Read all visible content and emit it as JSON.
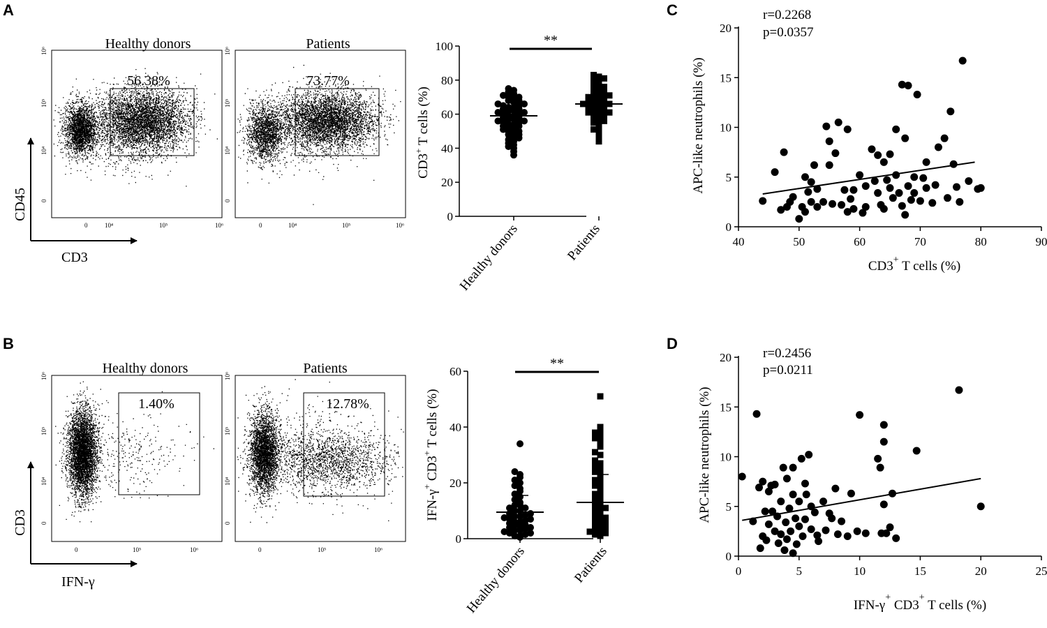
{
  "panels": {
    "a": {
      "label": "A",
      "flow_left": {
        "title": "Healthy donors",
        "gate_pct": "56.38%"
      },
      "flow_right": {
        "title": "Patients",
        "gate_pct": "73.77%"
      },
      "y_axis": "CD45",
      "x_axis": "CD3",
      "flow_y_ticks": [
        "10⁶",
        "10⁵",
        "10⁴",
        "0"
      ],
      "flow_x_ticks": [
        "0",
        "10⁴",
        "10⁵",
        "10⁶"
      ],
      "sig": "**"
    },
    "b": {
      "label": "B",
      "flow_left": {
        "title": "Healthy donors",
        "gate_pct": "1.40%"
      },
      "flow_right": {
        "title": "Patients",
        "gate_pct": "12.78%"
      },
      "y_axis": "CD3",
      "x_axis": "IFN-γ",
      "flow_y_ticks": [
        "10⁶",
        "10⁵",
        "10⁴",
        "0"
      ],
      "flow_x_ticks": [
        "0",
        "10⁵",
        "10⁶"
      ],
      "sig": "**"
    },
    "c": {
      "label": "C",
      "r": "r=0.2268",
      "p": "p=0.0357"
    },
    "d": {
      "label": "D",
      "r": "r=0.2456",
      "p": "p=0.0211"
    }
  },
  "chart_data": [
    {
      "id": "A-dot",
      "type": "scatter",
      "ylabel": "CD3⁺ T cells (%)",
      "ylabel_main": "CD3",
      "ylabel_sup": "+",
      "ylabel_rest": " T cells (%)",
      "categories": [
        "Healthy donors",
        "Patients"
      ],
      "ylim": [
        0,
        100
      ],
      "yticks": [
        0,
        20,
        40,
        60,
        80,
        100
      ],
      "means": [
        59,
        66
      ],
      "sd": [
        9,
        8
      ],
      "significance": "**",
      "series": [
        {
          "name": "Healthy donors",
          "marker": "circle",
          "values": [
            36,
            38,
            40,
            41,
            42,
            43,
            44,
            45,
            46,
            47,
            48,
            48,
            49,
            50,
            50,
            51,
            52,
            52,
            53,
            53,
            54,
            54,
            55,
            55,
            56,
            56,
            57,
            57,
            58,
            58,
            59,
            59,
            60,
            60,
            61,
            61,
            62,
            62,
            63,
            63,
            64,
            64,
            65,
            65,
            66,
            66,
            67,
            68,
            68,
            69,
            70,
            70,
            71,
            72,
            73,
            74,
            75
          ]
        },
        {
          "name": "Patients",
          "marker": "square",
          "values": [
            44,
            47,
            50,
            51,
            53,
            54,
            55,
            56,
            57,
            58,
            58,
            59,
            60,
            60,
            61,
            61,
            62,
            62,
            63,
            63,
            64,
            64,
            65,
            65,
            66,
            66,
            67,
            67,
            68,
            68,
            69,
            69,
            70,
            70,
            71,
            72,
            72,
            73,
            74,
            75,
            76,
            77,
            78,
            79,
            80,
            81,
            82,
            83
          ]
        }
      ]
    },
    {
      "id": "B-dot",
      "type": "scatter",
      "ylabel": "IFN-γ⁺ CD3⁺ T cells (%)",
      "ylabel_p1": "IFN-γ",
      "ylabel_p2": " CD3",
      "ylabel_p3": " T cells (%)",
      "ylabel_sup": "+",
      "categories": [
        "Healthy donors",
        "Patients"
      ],
      "ylim": [
        0,
        60
      ],
      "yticks": [
        0,
        20,
        40,
        60
      ],
      "means": [
        9.5,
        13
      ],
      "sd": [
        6,
        10
      ],
      "significance": "**",
      "series": [
        {
          "name": "Healthy donors",
          "marker": "circle",
          "values": [
            0.5,
            1,
            1,
            1.5,
            2,
            2,
            2.5,
            3,
            3,
            3.5,
            4,
            4,
            4.5,
            5,
            5,
            5.5,
            6,
            6,
            6.5,
            7,
            7,
            7.5,
            8,
            8,
            8.5,
            9,
            9,
            10,
            10,
            11,
            11,
            12,
            12,
            13,
            14,
            15,
            16,
            17,
            18,
            19,
            20,
            21,
            22,
            23,
            24,
            34
          ]
        },
        {
          "name": "Patients",
          "marker": "square",
          "values": [
            1,
            1.5,
            2,
            2.5,
            3,
            3.5,
            4,
            4.5,
            5,
            5.5,
            6,
            7,
            7.5,
            8,
            9,
            9.5,
            10,
            11,
            11.5,
            12,
            13,
            14,
            15,
            16,
            17,
            18,
            19,
            20,
            21,
            22,
            23,
            24,
            25,
            26,
            27,
            28,
            30,
            31,
            33,
            35,
            36,
            37,
            38,
            39,
            40,
            51
          ]
        }
      ]
    },
    {
      "id": "C",
      "type": "scatter",
      "xlabel": "CD3⁺ T cells (%)",
      "xlabel_main": "CD3",
      "xlabel_sup": "+",
      "xlabel_rest": " T cells (%)",
      "ylabel": "APC-like neutrophils (%)",
      "xlim": [
        40,
        90
      ],
      "ylim": [
        0,
        20
      ],
      "xticks": [
        40,
        50,
        60,
        70,
        80,
        90
      ],
      "yticks": [
        0,
        5,
        10,
        15,
        20
      ],
      "regression": {
        "x": [
          44,
          79
        ],
        "y": [
          3.3,
          6.5
        ]
      },
      "points": [
        [
          44,
          2.6
        ],
        [
          46,
          5.5
        ],
        [
          47,
          1.7
        ],
        [
          47.5,
          7.5
        ],
        [
          48,
          2.0
        ],
        [
          48.5,
          2.5
        ],
        [
          49,
          3.0
        ],
        [
          50,
          0.8
        ],
        [
          50.5,
          2.0
        ],
        [
          51,
          1.5
        ],
        [
          51,
          5.0
        ],
        [
          51.5,
          3.5
        ],
        [
          52,
          4.5
        ],
        [
          52,
          2.5
        ],
        [
          52.5,
          6.2
        ],
        [
          53,
          3.8
        ],
        [
          53,
          2.0
        ],
        [
          54,
          2.5
        ],
        [
          54.5,
          10.1
        ],
        [
          55,
          6.2
        ],
        [
          55,
          8.6
        ],
        [
          55.5,
          2.3
        ],
        [
          56,
          7.4
        ],
        [
          56.5,
          10.5
        ],
        [
          57,
          2.2
        ],
        [
          57.5,
          3.7
        ],
        [
          58,
          1.5
        ],
        [
          58,
          9.8
        ],
        [
          58.5,
          2.8
        ],
        [
          59,
          3.7
        ],
        [
          59,
          1.8
        ],
        [
          60,
          5.2
        ],
        [
          60.5,
          1.4
        ],
        [
          61,
          4.1
        ],
        [
          61,
          2.0
        ],
        [
          62,
          7.8
        ],
        [
          62.5,
          4.6
        ],
        [
          63,
          7.2
        ],
        [
          63,
          3.4
        ],
        [
          63.5,
          2.2
        ],
        [
          64,
          6.5
        ],
        [
          64,
          1.8
        ],
        [
          64.5,
          4.7
        ],
        [
          65,
          7.3
        ],
        [
          65,
          3.9
        ],
        [
          65.5,
          2.9
        ],
        [
          66,
          9.8
        ],
        [
          66,
          5.2
        ],
        [
          66.5,
          3.4
        ],
        [
          67,
          14.3
        ],
        [
          67,
          2.1
        ],
        [
          67.5,
          8.9
        ],
        [
          67.5,
          1.2
        ],
        [
          68,
          14.2
        ],
        [
          68,
          4.1
        ],
        [
          68.5,
          2.7
        ],
        [
          69,
          5.0
        ],
        [
          69,
          3.4
        ],
        [
          69.5,
          13.3
        ],
        [
          70,
          2.6
        ],
        [
          70.5,
          4.9
        ],
        [
          71,
          6.5
        ],
        [
          71,
          3.9
        ],
        [
          72,
          2.4
        ],
        [
          72.5,
          4.2
        ],
        [
          73,
          8.0
        ],
        [
          74,
          8.9
        ],
        [
          74.5,
          2.9
        ],
        [
          75,
          11.6
        ],
        [
          75.5,
          6.3
        ],
        [
          76,
          4.0
        ],
        [
          76.5,
          2.5
        ],
        [
          77,
          16.7
        ],
        [
          78,
          4.6
        ],
        [
          79.5,
          3.8
        ],
        [
          80,
          3.9
        ]
      ]
    },
    {
      "id": "D",
      "type": "scatter",
      "xlabel": "IFN-γ⁺ CD3⁺ T cells (%)",
      "xlabel_p1": "IFN-γ",
      "xlabel_p2": " CD3",
      "xlabel_p3": " T cells  (%)",
      "xlabel_sup": "+",
      "ylabel": "APC-like neutrophils (%)",
      "xlim": [
        0,
        25
      ],
      "ylim": [
        0,
        20
      ],
      "xticks": [
        0,
        5,
        10,
        15,
        20,
        25
      ],
      "yticks": [
        0,
        5,
        10,
        15,
        20
      ],
      "regression": {
        "x": [
          0.3,
          20
        ],
        "y": [
          3.6,
          7.8
        ]
      },
      "points": [
        [
          0.3,
          8.0
        ],
        [
          1.2,
          3.5
        ],
        [
          1.5,
          14.3
        ],
        [
          1.7,
          6.9
        ],
        [
          1.8,
          0.8
        ],
        [
          2.0,
          7.5
        ],
        [
          2.0,
          2.0
        ],
        [
          2.2,
          4.5
        ],
        [
          2.3,
          1.6
        ],
        [
          2.5,
          3.2
        ],
        [
          2.5,
          6.5
        ],
        [
          2.7,
          7.1
        ],
        [
          2.8,
          4.5
        ],
        [
          3.0,
          2.5
        ],
        [
          3.0,
          7.2
        ],
        [
          3.2,
          4.0
        ],
        [
          3.3,
          1.3
        ],
        [
          3.5,
          5.5
        ],
        [
          3.5,
          2.2
        ],
        [
          3.7,
          8.9
        ],
        [
          3.8,
          0.6
        ],
        [
          3.9,
          3.4
        ],
        [
          4.0,
          7.8
        ],
        [
          4.0,
          1.7
        ],
        [
          4.2,
          4.8
        ],
        [
          4.3,
          2.5
        ],
        [
          4.5,
          8.9
        ],
        [
          4.5,
          6.2
        ],
        [
          4.5,
          0.3
        ],
        [
          4.7,
          3.8
        ],
        [
          4.8,
          1.2
        ],
        [
          5.0,
          5.5
        ],
        [
          5.0,
          3.0
        ],
        [
          5.2,
          9.8
        ],
        [
          5.3,
          2.0
        ],
        [
          5.5,
          7.3
        ],
        [
          5.5,
          3.7
        ],
        [
          5.6,
          6.2
        ],
        [
          5.8,
          10.2
        ],
        [
          6.0,
          5.0
        ],
        [
          6.0,
          2.7
        ],
        [
          6.3,
          4.4
        ],
        [
          6.5,
          2.1
        ],
        [
          6.6,
          1.5
        ],
        [
          7.0,
          5.5
        ],
        [
          7.2,
          2.6
        ],
        [
          7.5,
          4.3
        ],
        [
          7.7,
          3.8
        ],
        [
          8.0,
          6.8
        ],
        [
          8.2,
          2.2
        ],
        [
          8.5,
          3.5
        ],
        [
          9.0,
          2.0
        ],
        [
          9.3,
          6.3
        ],
        [
          9.8,
          2.5
        ],
        [
          10.0,
          14.2
        ],
        [
          10.5,
          2.3
        ],
        [
          11.5,
          9.8
        ],
        [
          11.7,
          8.9
        ],
        [
          11.8,
          2.3
        ],
        [
          12.0,
          11.5
        ],
        [
          12.0,
          13.2
        ],
        [
          12.0,
          5.2
        ],
        [
          12.2,
          2.3
        ],
        [
          12.5,
          2.9
        ],
        [
          12.7,
          6.3
        ],
        [
          13.0,
          1.8
        ],
        [
          14.7,
          10.6
        ],
        [
          18.2,
          16.7
        ],
        [
          20.0,
          5.0
        ]
      ]
    }
  ]
}
